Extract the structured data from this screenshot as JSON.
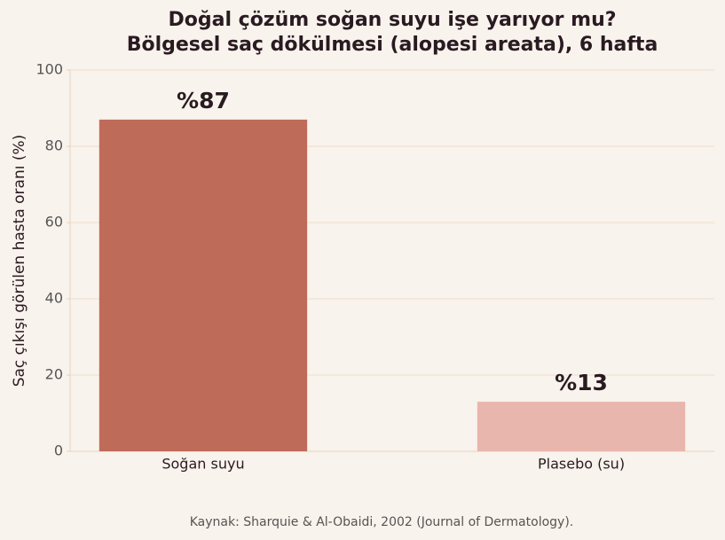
{
  "chart_data": {
    "type": "bar",
    "title": [
      "Doğal çözüm soğan suyu işe yarıyor mu?",
      "Bölgesel saç dökülmesi (alopesi areata), 6 hafta"
    ],
    "ylabel": "Saç çıkışı görülen hasta oranı (%)",
    "categories": [
      "Soğan suyu",
      "Plasebo (su)"
    ],
    "values": [
      87,
      13
    ],
    "value_labels": [
      "%87",
      "%13"
    ],
    "colors": [
      "#bf6b5a",
      "#e8b6ad"
    ],
    "ylim": [
      0,
      100
    ],
    "yticks": [
      0,
      20,
      40,
      60,
      80,
      100
    ],
    "grid": true,
    "source": "Kaynak: Sharquie & Al-Obaidi, 2002 (Journal of Dermatology)."
  }
}
